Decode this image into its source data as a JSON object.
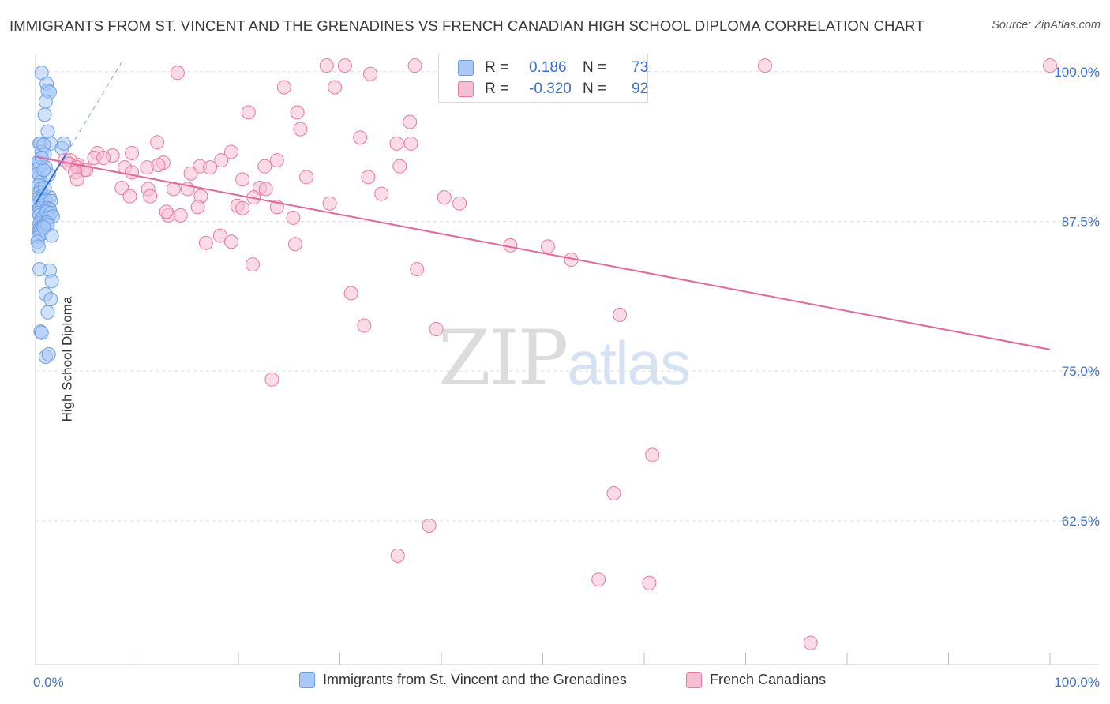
{
  "header": {
    "title": "IMMIGRANTS FROM ST. VINCENT AND THE GRENADINES VS FRENCH CANADIAN HIGH SCHOOL DIPLOMA CORRELATION CHART",
    "source": "Source: ZipAtlas.com"
  },
  "watermark": {
    "part1": "ZIP",
    "part2": "atlas"
  },
  "stats": {
    "rows": [
      {
        "r_label": "R =",
        "r_value": "0.186",
        "n_label": "N =",
        "n_value": "73",
        "color": "#a9c8f5"
      },
      {
        "r_label": "R =",
        "r_value": "-0.320",
        "n_label": "N =",
        "n_value": "92",
        "color": "#f8bfd2"
      }
    ]
  },
  "legend": {
    "items": [
      {
        "label": "Immigrants from St. Vincent and the Grenadines",
        "color": "#a9c8f5"
      },
      {
        "label": "French Canadians",
        "color": "#f8bfd2"
      }
    ]
  },
  "chart_data": {
    "type": "scatter",
    "title": "IMMIGRANTS FROM ST. VINCENT AND THE GRENADINES VS FRENCH CANADIAN HIGH SCHOOL DIPLOMA CORRELATION CHART",
    "xlabel": "",
    "ylabel": "High School Diploma",
    "xlim": [
      0,
      100
    ],
    "ylim": [
      50.5,
      101.5
    ],
    "x_tick_labels": [
      "0.0%",
      "100.0%"
    ],
    "y_tick_labels": [
      "100.0%",
      "87.5%",
      "75.0%",
      "62.5%"
    ],
    "y_ticks": [
      100,
      87.5,
      75,
      62.5
    ],
    "grid": true,
    "legend_position": "bottom",
    "series": [
      {
        "name": "Immigrants from St. Vincent and the Grenadines",
        "color": "#6a9de8",
        "fill": "#a9c8f5",
        "r": 0.186,
        "n": 73,
        "trend": {
          "x": [
            0.0,
            3.0
          ],
          "y": [
            89.0,
            93.1
          ]
        },
        "trend_dashed": {
          "x": [
            3.0,
            8.5
          ],
          "y": [
            93.1,
            100.8
          ]
        },
        "points": [
          [
            0.4,
            92.4
          ],
          [
            0.4,
            91.3
          ],
          [
            0.6,
            99.9
          ],
          [
            0.3,
            92.5
          ],
          [
            0.5,
            94.0
          ],
          [
            0.4,
            94.0
          ],
          [
            0.6,
            93.3
          ],
          [
            0.4,
            92.0
          ],
          [
            0.3,
            91.5
          ],
          [
            0.5,
            90.8
          ],
          [
            0.3,
            90.5
          ],
          [
            0.5,
            90.2
          ],
          [
            0.4,
            89.9
          ],
          [
            0.7,
            89.6
          ],
          [
            0.4,
            89.5
          ],
          [
            0.6,
            89.4
          ],
          [
            0.5,
            89.2
          ],
          [
            0.3,
            89.0
          ],
          [
            0.6,
            88.8
          ],
          [
            0.4,
            88.6
          ],
          [
            0.5,
            88.4
          ],
          [
            0.3,
            88.2
          ],
          [
            0.4,
            88.0
          ],
          [
            0.6,
            87.7
          ],
          [
            0.5,
            87.5
          ],
          [
            0.4,
            87.3
          ],
          [
            0.6,
            87.1
          ],
          [
            0.4,
            86.9
          ],
          [
            0.5,
            86.8
          ],
          [
            0.4,
            86.6
          ],
          [
            0.5,
            86.4
          ],
          [
            0.3,
            86.2
          ],
          [
            0.2,
            85.8
          ],
          [
            0.3,
            85.4
          ],
          [
            0.4,
            83.5
          ],
          [
            0.5,
            78.3
          ],
          [
            0.6,
            78.2
          ],
          [
            1.1,
            99.0
          ],
          [
            1.2,
            98.4
          ],
          [
            1.4,
            98.3
          ],
          [
            1.0,
            97.5
          ],
          [
            0.9,
            96.4
          ],
          [
            1.2,
            95.0
          ],
          [
            1.5,
            94.0
          ],
          [
            1.0,
            92.0
          ],
          [
            1.3,
            91.4
          ],
          [
            1.4,
            89.5
          ],
          [
            1.0,
            89.3
          ],
          [
            1.5,
            89.2
          ],
          [
            1.2,
            88.6
          ],
          [
            1.4,
            88.5
          ],
          [
            1.1,
            88.3
          ],
          [
            1.5,
            88.2
          ],
          [
            1.3,
            87.8
          ],
          [
            1.7,
            87.9
          ],
          [
            1.1,
            87.4
          ],
          [
            1.2,
            87.2
          ],
          [
            1.6,
            86.3
          ],
          [
            1.4,
            83.4
          ],
          [
            1.6,
            82.5
          ],
          [
            1.0,
            81.4
          ],
          [
            1.5,
            81.0
          ],
          [
            1.2,
            79.9
          ],
          [
            1.0,
            76.2
          ],
          [
            1.3,
            76.4
          ],
          [
            0.8,
            93.9
          ],
          [
            0.9,
            93.1
          ],
          [
            2.6,
            93.6
          ],
          [
            2.8,
            94.0
          ],
          [
            0.8,
            91.8
          ],
          [
            0.6,
            92.8
          ],
          [
            0.9,
            90.3
          ],
          [
            0.8,
            87.0
          ]
        ]
      },
      {
        "name": "French Canadians",
        "color": "#e8799e",
        "fill": "#f8bfd2",
        "r": -0.32,
        "n": 92,
        "trend": {
          "x": [
            0.0,
            100.0
          ],
          "y": [
            92.9,
            76.8
          ]
        },
        "points": [
          [
            28.7,
            100.5
          ],
          [
            30.5,
            100.5
          ],
          [
            37.4,
            100.5
          ],
          [
            47.9,
            100.5
          ],
          [
            71.9,
            100.5
          ],
          [
            100.0,
            100.5
          ],
          [
            33.0,
            99.8
          ],
          [
            24.5,
            98.7
          ],
          [
            29.5,
            98.7
          ],
          [
            21.0,
            96.6
          ],
          [
            25.8,
            96.6
          ],
          [
            36.9,
            95.8
          ],
          [
            26.1,
            95.2
          ],
          [
            32.0,
            94.5
          ],
          [
            12.0,
            94.1
          ],
          [
            35.6,
            94.0
          ],
          [
            37.0,
            94.0
          ],
          [
            19.3,
            93.3
          ],
          [
            6.1,
            93.2
          ],
          [
            7.6,
            93.0
          ],
          [
            9.5,
            93.2
          ],
          [
            5.8,
            92.8
          ],
          [
            6.7,
            92.8
          ],
          [
            2.9,
            92.6
          ],
          [
            3.4,
            92.6
          ],
          [
            18.3,
            92.6
          ],
          [
            23.8,
            92.6
          ],
          [
            12.6,
            92.4
          ],
          [
            3.3,
            92.3
          ],
          [
            4.2,
            92.2
          ],
          [
            4.1,
            92.0
          ],
          [
            8.8,
            92.0
          ],
          [
            11.0,
            92.0
          ],
          [
            12.1,
            92.2
          ],
          [
            16.2,
            92.1
          ],
          [
            17.2,
            92.0
          ],
          [
            22.6,
            92.1
          ],
          [
            35.9,
            92.1
          ],
          [
            4.8,
            91.8
          ],
          [
            5.0,
            91.8
          ],
          [
            3.9,
            91.6
          ],
          [
            9.5,
            91.6
          ],
          [
            15.3,
            91.5
          ],
          [
            26.7,
            91.2
          ],
          [
            32.8,
            91.2
          ],
          [
            4.1,
            91.0
          ],
          [
            20.4,
            91.0
          ],
          [
            8.5,
            90.3
          ],
          [
            11.1,
            90.2
          ],
          [
            13.6,
            90.2
          ],
          [
            15.0,
            90.2
          ],
          [
            22.1,
            90.3
          ],
          [
            22.7,
            90.2
          ],
          [
            34.1,
            89.8
          ],
          [
            9.3,
            89.6
          ],
          [
            11.3,
            89.6
          ],
          [
            16.3,
            89.6
          ],
          [
            21.5,
            89.5
          ],
          [
            40.3,
            89.5
          ],
          [
            29.0,
            89.0
          ],
          [
            41.8,
            89.0
          ],
          [
            16.0,
            88.7
          ],
          [
            19.9,
            88.8
          ],
          [
            20.4,
            88.6
          ],
          [
            23.8,
            88.7
          ],
          [
            25.4,
            87.8
          ],
          [
            13.1,
            88.0
          ],
          [
            14.3,
            88.0
          ],
          [
            12.9,
            88.3
          ],
          [
            18.2,
            86.3
          ],
          [
            16.8,
            85.7
          ],
          [
            19.3,
            85.8
          ],
          [
            25.6,
            85.6
          ],
          [
            46.8,
            85.5
          ],
          [
            50.5,
            85.4
          ],
          [
            52.8,
            84.3
          ],
          [
            21.4,
            83.9
          ],
          [
            37.6,
            83.5
          ],
          [
            31.1,
            81.5
          ],
          [
            57.6,
            79.7
          ],
          [
            32.4,
            78.8
          ],
          [
            39.5,
            78.5
          ],
          [
            23.3,
            74.3
          ],
          [
            60.8,
            68.0
          ],
          [
            57.0,
            64.8
          ],
          [
            38.8,
            62.1
          ],
          [
            35.7,
            59.6
          ],
          [
            55.5,
            57.6
          ],
          [
            60.5,
            57.3
          ],
          [
            76.4,
            52.3
          ],
          [
            14.0,
            99.9
          ],
          [
            48.0,
            99.2
          ]
        ]
      }
    ]
  }
}
